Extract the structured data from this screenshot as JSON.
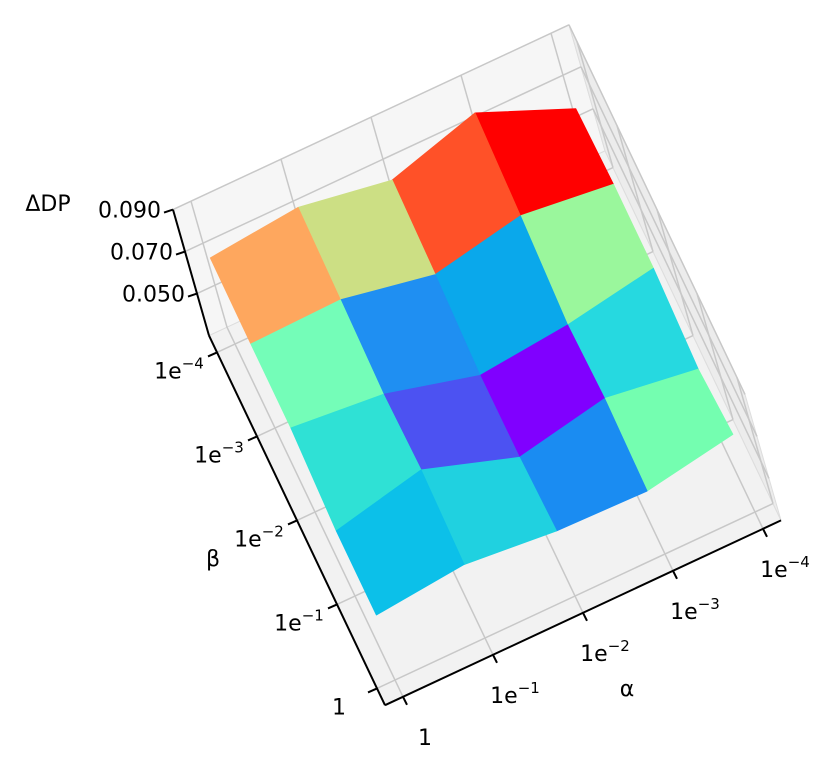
{
  "chart_data": {
    "type": "surface3d",
    "xlabel": "α",
    "ylabel": "β",
    "zlabel": "ΔDP",
    "x": [
      "1",
      "1e−1",
      "1e−2",
      "1e−3",
      "1e−4"
    ],
    "y": [
      "1",
      "1e−1",
      "1e−2",
      "1e−3",
      "1e−4"
    ],
    "z": [
      [
        0.061,
        0.065,
        0.061,
        0.06,
        0.067
      ],
      [
        0.061,
        0.07,
        0.056,
        0.064,
        0.058
      ],
      [
        0.07,
        0.066,
        0.055,
        0.059,
        0.066
      ],
      [
        0.07,
        0.071,
        0.063,
        0.071,
        0.066
      ],
      [
        0.071,
        0.075,
        0.068,
        0.08,
        0.062
      ]
    ],
    "facecolors": [
      [
        "#0cc0e9",
        "#20d1e0",
        "#1a8cf2",
        "#74feb0"
      ],
      [
        "#2fe1d5",
        "#4c52f2",
        "#8000ff",
        "#26d9e0"
      ],
      [
        "#74fdb8",
        "#1f8ff2",
        "#0aa8eb",
        "#9af79c"
      ],
      [
        "#fea75e",
        "#ccdf84",
        "#ff5128",
        "#ff0000"
      ]
    ],
    "zlim": [
      0.03,
      0.09
    ],
    "zticks": [
      {
        "value": 0.05,
        "label": "0.050"
      },
      {
        "value": 0.07,
        "label": "0.070"
      },
      {
        "value": 0.09,
        "label": "0.090"
      }
    ],
    "grid": true
  }
}
